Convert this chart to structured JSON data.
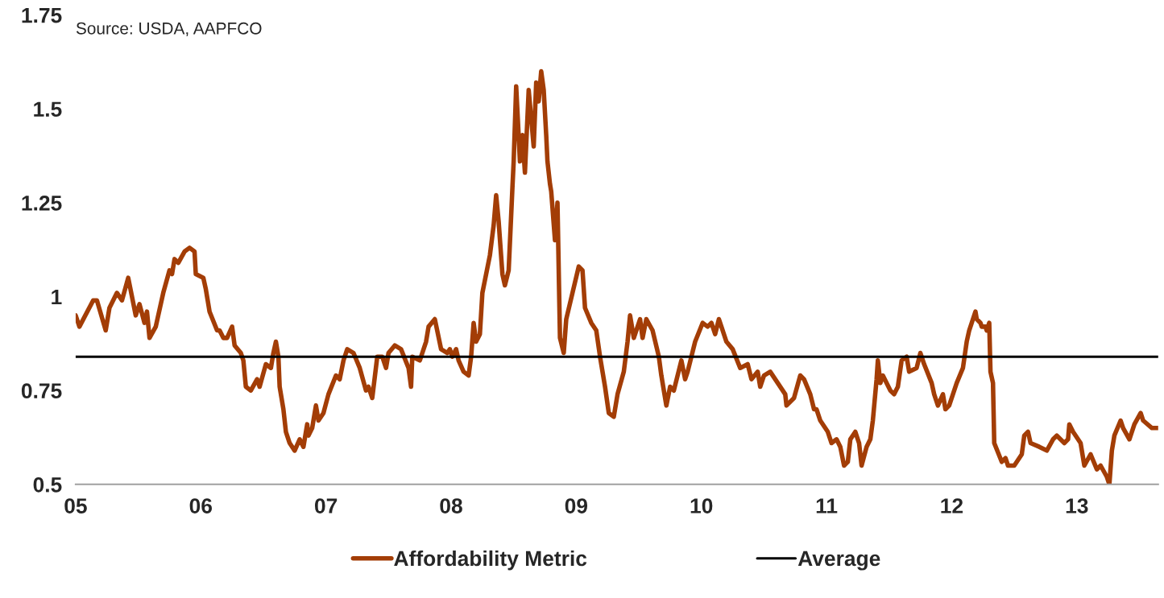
{
  "chart_data": {
    "type": "line",
    "annotations": [
      "Source: USDA, AAPFCO"
    ],
    "xlim": [
      2005,
      2013.65
    ],
    "xticks": [
      {
        "value": 2005,
        "label": "05"
      },
      {
        "value": 2006,
        "label": "06"
      },
      {
        "value": 2007,
        "label": "07"
      },
      {
        "value": 2008,
        "label": "08"
      },
      {
        "value": 2009,
        "label": "09"
      },
      {
        "value": 2010,
        "label": "10"
      },
      {
        "value": 2011,
        "label": "11"
      },
      {
        "value": 2012,
        "label": "12"
      },
      {
        "value": 2013,
        "label": "13"
      }
    ],
    "ylim": [
      0.5,
      1.75
    ],
    "yticks": [
      0.5,
      0.75,
      1,
      1.25,
      1.5,
      1.75
    ],
    "grid": false,
    "legend": "bottom",
    "line_style": "solid",
    "marker": "none",
    "series": [
      {
        "name": "Affordability Metric",
        "color": "#a33d06",
        "x": [
          2005.0,
          2005.03,
          2005.14,
          2005.17,
          2005.24,
          2005.27,
          2005.33,
          2005.37,
          2005.42,
          2005.48,
          2005.51,
          2005.55,
          2005.57,
          2005.59,
          2005.64,
          2005.7,
          2005.75,
          2005.77,
          2005.79,
          2005.82,
          2005.87,
          2005.91,
          2005.95,
          2005.96,
          2006.02,
          2006.04,
          2006.07,
          2006.13,
          2006.15,
          2006.18,
          2006.21,
          2006.25,
          2006.27,
          2006.32,
          2006.34,
          2006.36,
          2006.4,
          2006.45,
          2006.47,
          2006.52,
          2006.56,
          2006.58,
          2006.6,
          2006.62,
          2006.63,
          2006.66,
          2006.68,
          2006.71,
          2006.75,
          2006.79,
          2006.82,
          2006.85,
          2006.86,
          2006.89,
          2006.92,
          2006.94,
          2006.98,
          2007.02,
          2007.08,
          2007.11,
          2007.14,
          2007.17,
          2007.22,
          2007.27,
          2007.32,
          2007.34,
          2007.37,
          2007.41,
          2007.45,
          2007.48,
          2007.5,
          2007.55,
          2007.6,
          2007.66,
          2007.68,
          2007.69,
          2007.75,
          2007.8,
          2007.82,
          2007.87,
          2007.92,
          2007.97,
          2007.99,
          2008.01,
          2008.04,
          2008.06,
          2008.1,
          2008.14,
          2008.16,
          2008.18,
          2008.2,
          2008.23,
          2008.25,
          2008.31,
          2008.34,
          2008.36,
          2008.38,
          2008.41,
          2008.43,
          2008.46,
          2008.49,
          2008.5,
          2008.52,
          2008.55,
          2008.57,
          2008.59,
          2008.62,
          2008.66,
          2008.68,
          2008.7,
          2008.72,
          2008.74,
          2008.76,
          2008.77,
          2008.79,
          2008.8,
          2008.83,
          2008.85,
          2008.87,
          2008.9,
          2008.92,
          2008.97,
          2009.02,
          2009.05,
          2009.07,
          2009.12,
          2009.16,
          2009.19,
          2009.23,
          2009.26,
          2009.3,
          2009.33,
          2009.38,
          2009.41,
          2009.43,
          2009.46,
          2009.51,
          2009.53,
          2009.56,
          2009.61,
          2009.66,
          2009.68,
          2009.72,
          2009.75,
          2009.78,
          2009.84,
          2009.87,
          2009.89,
          2009.95,
          2010.01,
          2010.05,
          2010.08,
          2010.11,
          2010.14,
          2010.16,
          2010.2,
          2010.25,
          2010.31,
          2010.37,
          2010.4,
          2010.45,
          2010.47,
          2010.5,
          2010.55,
          2010.61,
          2010.67,
          2010.68,
          2010.74,
          2010.79,
          2010.82,
          2010.87,
          2010.9,
          2010.92,
          2010.95,
          2011.01,
          2011.04,
          2011.08,
          2011.11,
          2011.14,
          2011.17,
          2011.19,
          2011.23,
          2011.26,
          2011.28,
          2011.32,
          2011.35,
          2011.37,
          2011.4,
          2011.41,
          2011.43,
          2011.45,
          2011.51,
          2011.54,
          2011.57,
          2011.6,
          2011.64,
          2011.66,
          2011.72,
          2011.75,
          2011.78,
          2011.84,
          2011.86,
          2011.89,
          2011.93,
          2011.95,
          2011.98,
          2012.04,
          2012.09,
          2012.12,
          2012.14,
          2012.19,
          2012.2,
          2012.23,
          2012.24,
          2012.27,
          2012.28,
          2012.3,
          2012.31,
          2012.33,
          2012.34,
          2012.4,
          2012.43,
          2012.45,
          2012.5,
          2012.56,
          2012.58,
          2012.61,
          2012.63,
          2012.7,
          2012.76,
          2012.81,
          2012.84,
          2012.9,
          2012.93,
          2012.94,
          2012.97,
          2013.03,
          2013.06,
          2013.11,
          2013.16,
          2013.19,
          2013.24,
          2013.26,
          2013.28,
          2013.3,
          2013.35,
          2013.37,
          2013.42,
          2013.46,
          2013.51,
          2013.53,
          2013.6,
          2013.65
        ],
        "values": [
          0.95,
          0.92,
          0.99,
          0.99,
          0.91,
          0.97,
          1.01,
          0.99,
          1.05,
          0.95,
          0.98,
          0.93,
          0.96,
          0.89,
          0.92,
          1.01,
          1.07,
          1.06,
          1.1,
          1.09,
          1.12,
          1.13,
          1.12,
          1.06,
          1.05,
          1.02,
          0.96,
          0.91,
          0.91,
          0.89,
          0.89,
          0.92,
          0.87,
          0.85,
          0.83,
          0.76,
          0.75,
          0.78,
          0.76,
          0.82,
          0.81,
          0.85,
          0.88,
          0.84,
          0.76,
          0.7,
          0.64,
          0.61,
          0.59,
          0.62,
          0.6,
          0.66,
          0.63,
          0.65,
          0.71,
          0.67,
          0.69,
          0.74,
          0.79,
          0.78,
          0.83,
          0.86,
          0.85,
          0.81,
          0.75,
          0.76,
          0.73,
          0.84,
          0.84,
          0.81,
          0.85,
          0.87,
          0.86,
          0.81,
          0.76,
          0.84,
          0.83,
          0.88,
          0.92,
          0.94,
          0.86,
          0.85,
          0.86,
          0.84,
          0.86,
          0.83,
          0.8,
          0.79,
          0.84,
          0.93,
          0.88,
          0.9,
          1.01,
          1.11,
          1.19,
          1.27,
          1.2,
          1.06,
          1.03,
          1.07,
          1.29,
          1.36,
          1.56,
          1.36,
          1.43,
          1.33,
          1.55,
          1.4,
          1.57,
          1.52,
          1.6,
          1.55,
          1.43,
          1.36,
          1.3,
          1.28,
          1.15,
          1.25,
          0.89,
          0.85,
          0.94,
          1.01,
          1.08,
          1.07,
          0.97,
          0.93,
          0.91,
          0.84,
          0.76,
          0.69,
          0.68,
          0.74,
          0.8,
          0.88,
          0.95,
          0.89,
          0.94,
          0.89,
          0.94,
          0.91,
          0.84,
          0.79,
          0.71,
          0.76,
          0.75,
          0.83,
          0.78,
          0.8,
          0.88,
          0.93,
          0.92,
          0.93,
          0.9,
          0.94,
          0.92,
          0.88,
          0.86,
          0.81,
          0.82,
          0.78,
          0.8,
          0.76,
          0.79,
          0.8,
          0.77,
          0.74,
          0.71,
          0.73,
          0.79,
          0.78,
          0.74,
          0.7,
          0.7,
          0.67,
          0.64,
          0.61,
          0.62,
          0.6,
          0.55,
          0.56,
          0.62,
          0.64,
          0.61,
          0.55,
          0.6,
          0.62,
          0.67,
          0.78,
          0.83,
          0.77,
          0.79,
          0.75,
          0.74,
          0.76,
          0.83,
          0.84,
          0.8,
          0.81,
          0.85,
          0.82,
          0.77,
          0.74,
          0.71,
          0.74,
          0.7,
          0.71,
          0.77,
          0.81,
          0.88,
          0.91,
          0.96,
          0.94,
          0.93,
          0.92,
          0.92,
          0.91,
          0.93,
          0.8,
          0.77,
          0.61,
          0.56,
          0.57,
          0.55,
          0.55,
          0.58,
          0.63,
          0.64,
          0.61,
          0.6,
          0.59,
          0.62,
          0.63,
          0.61,
          0.62,
          0.66,
          0.64,
          0.61,
          0.55,
          0.58,
          0.54,
          0.55,
          0.52,
          0.5,
          0.59,
          0.63,
          0.67,
          0.65,
          0.62,
          0.66,
          0.69,
          0.67,
          0.65,
          0.65
        ]
      },
      {
        "name": "Average",
        "color": "#000000",
        "x": [
          2005,
          2013.65
        ],
        "values": [
          0.84,
          0.84
        ]
      }
    ]
  }
}
